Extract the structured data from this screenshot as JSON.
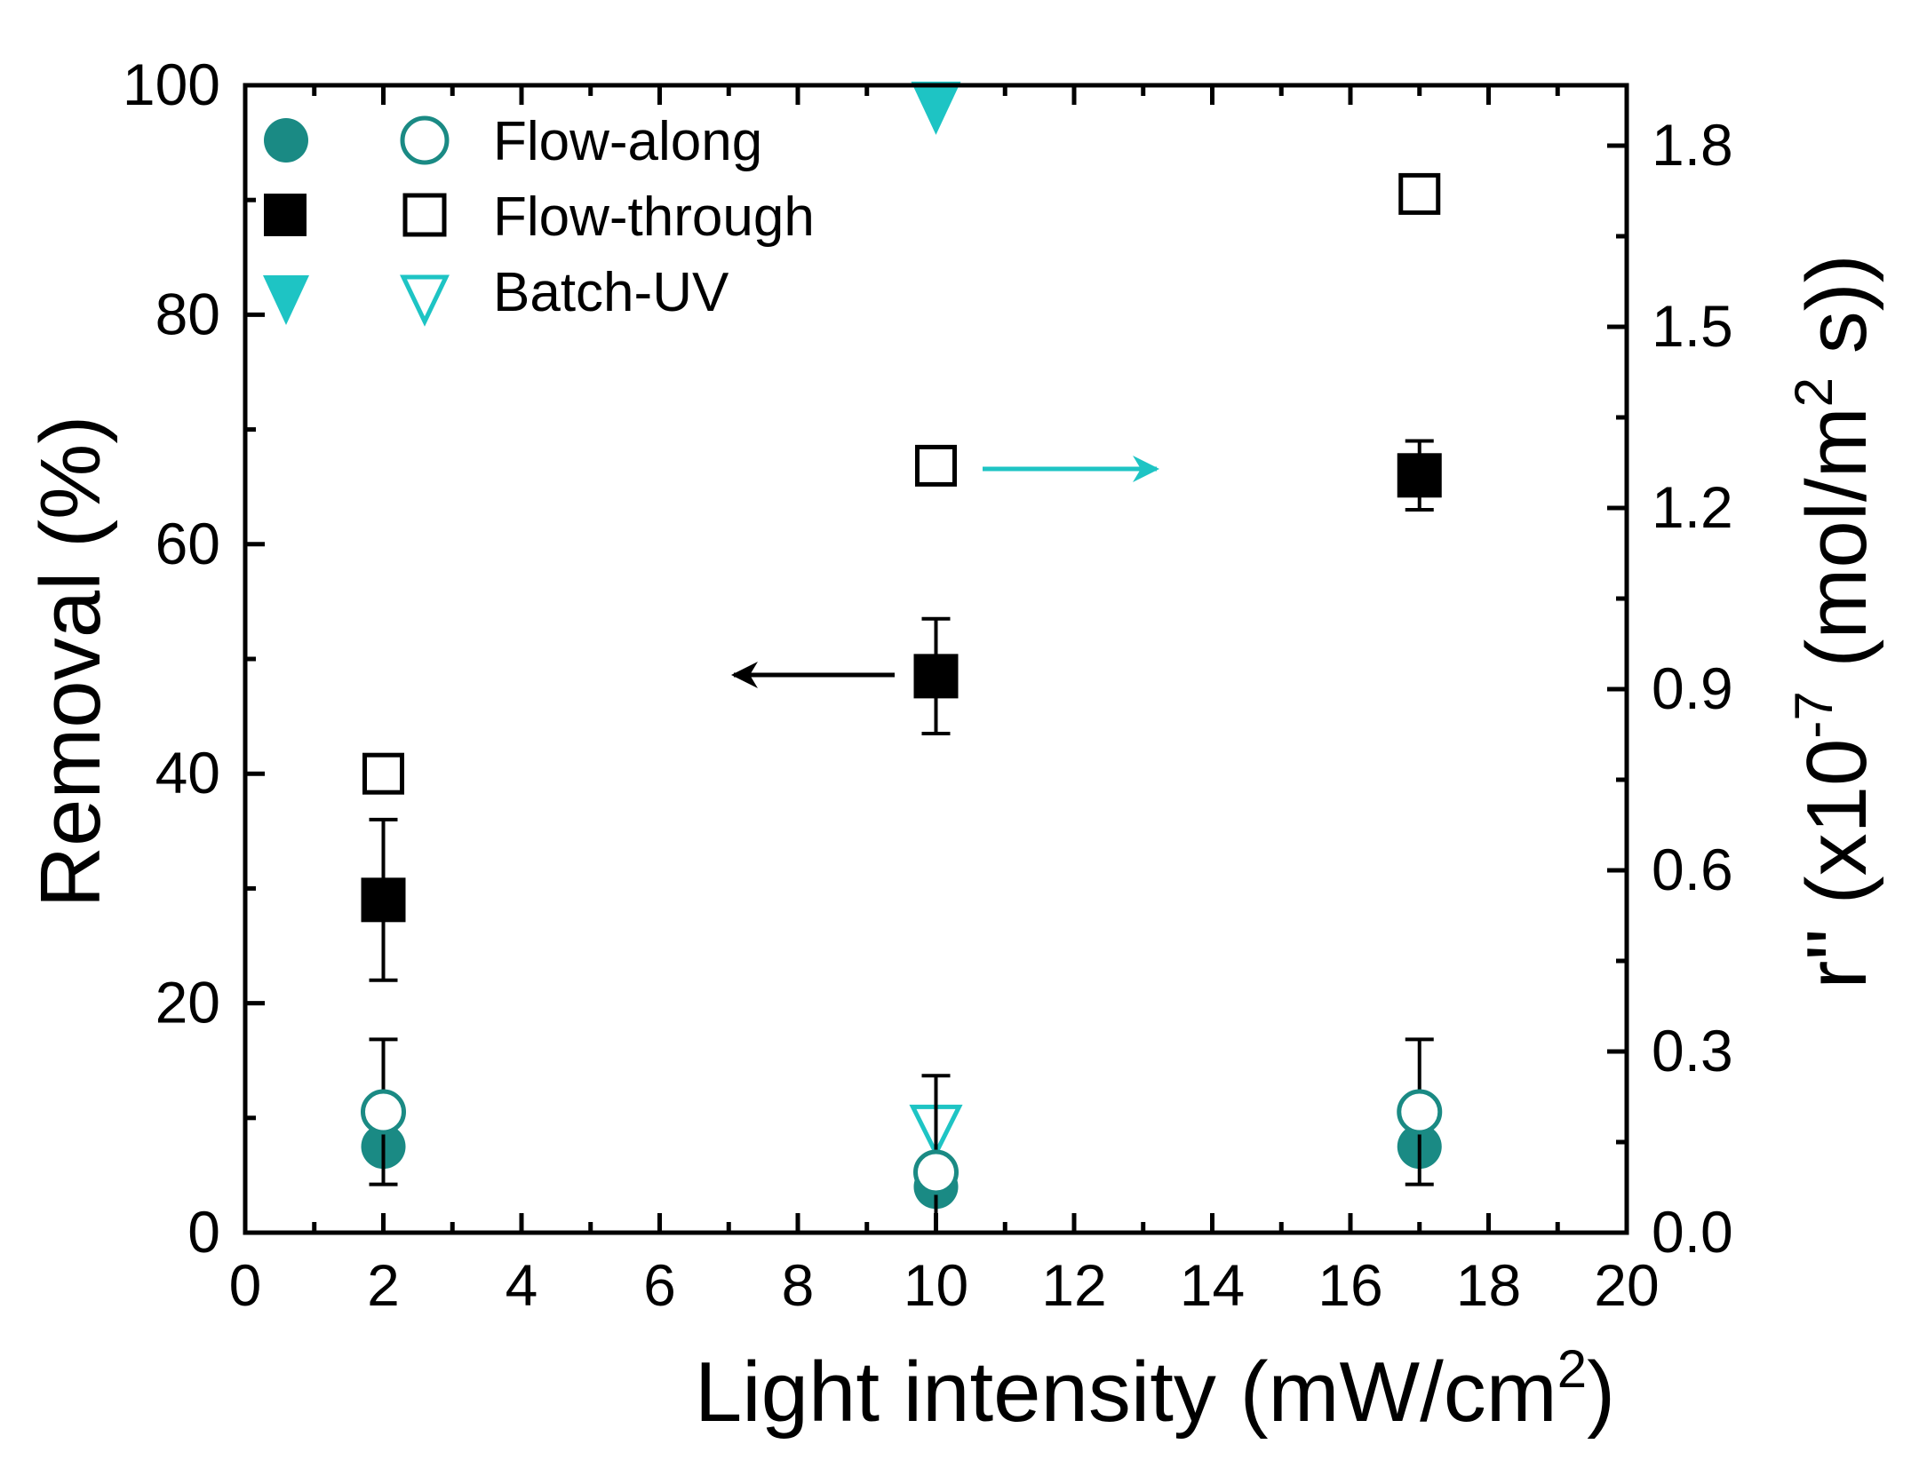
{
  "colors": {
    "teal": "#1a8a84",
    "cyan": "#1ec4c4",
    "black": "#000000"
  },
  "chart_data": {
    "type": "scatter",
    "xlabel": "Light intensity (mW/cm",
    "xlabel_sup": "2",
    "xlabel_end": ")",
    "ylabel": "Removal (%)",
    "y2label_a": "r'' (x10",
    "y2label_sup1": "-7",
    "y2label_b": " (mol/m",
    "y2label_sup2": "2",
    "y2label_c": " s))",
    "xlim": [
      0,
      20
    ],
    "ylim": [
      0,
      100
    ],
    "y2lim": [
      0,
      1.9
    ],
    "xticks": [
      "0",
      "2",
      "4",
      "6",
      "8",
      "10",
      "12",
      "14",
      "16",
      "18",
      "20"
    ],
    "yticks": [
      "0",
      "20",
      "40",
      "60",
      "80",
      "100"
    ],
    "y2ticks": [
      "0.0",
      "0.3",
      "0.6",
      "0.9",
      "1.2",
      "1.5",
      "1.8"
    ],
    "legend": [
      {
        "label": "Flow-along",
        "key": "flow_along"
      },
      {
        "label": "Flow-through",
        "key": "flow_through"
      },
      {
        "label": "Batch-UV",
        "key": "batch_uv"
      }
    ],
    "series": [
      {
        "name": "Flow-along removal",
        "key": "flow_along",
        "axis": "left",
        "marker": "circle-filled",
        "color": "#1a8a84",
        "points": [
          {
            "x": 2,
            "y": 7.5,
            "err": null
          },
          {
            "x": 10,
            "y": 4,
            "err": null
          },
          {
            "x": 17,
            "y": 7.5,
            "err": null
          }
        ]
      },
      {
        "name": "Flow-along rate",
        "key": "flow_along",
        "axis": "right",
        "marker": "circle-open",
        "color": "#1a8a84",
        "points": [
          {
            "x": 2,
            "y": 0.2,
            "err": 0.12
          },
          {
            "x": 10,
            "y": 0.1,
            "err": 0.16
          },
          {
            "x": 17,
            "y": 0.2,
            "err": 0.12
          }
        ]
      },
      {
        "name": "Flow-through removal",
        "key": "flow_through",
        "axis": "left",
        "marker": "square-filled",
        "color": "#000000",
        "points": [
          {
            "x": 2,
            "y": 29,
            "err": 7
          },
          {
            "x": 10,
            "y": 48.5,
            "err": 5
          },
          {
            "x": 17,
            "y": 66,
            "err": 3
          }
        ]
      },
      {
        "name": "Flow-through rate",
        "key": "flow_through",
        "axis": "right",
        "marker": "square-open",
        "color": "#000000",
        "points": [
          {
            "x": 2,
            "y": 0.76,
            "err": null
          },
          {
            "x": 10,
            "y": 1.27,
            "err": null
          },
          {
            "x": 17,
            "y": 1.72,
            "err": null
          }
        ]
      },
      {
        "name": "Batch-UV removal",
        "key": "batch_uv",
        "axis": "left",
        "marker": "triangle-down-filled",
        "color": "#1ec4c4",
        "points": [
          {
            "x": 10,
            "y": 98,
            "err": null
          }
        ]
      },
      {
        "name": "Batch-UV rate",
        "key": "batch_uv",
        "axis": "right",
        "marker": "triangle-down-open",
        "color": "#1ec4c4",
        "points": [
          {
            "x": 10,
            "y": 0.17,
            "err": null
          }
        ]
      }
    ],
    "annotations": [
      {
        "type": "arrow",
        "direction": "left",
        "color": "#000000",
        "meaning": "points to left axis (Removal)"
      },
      {
        "type": "arrow",
        "direction": "right",
        "color": "#1ec4c4",
        "meaning": "points to right axis (rate)"
      }
    ]
  }
}
